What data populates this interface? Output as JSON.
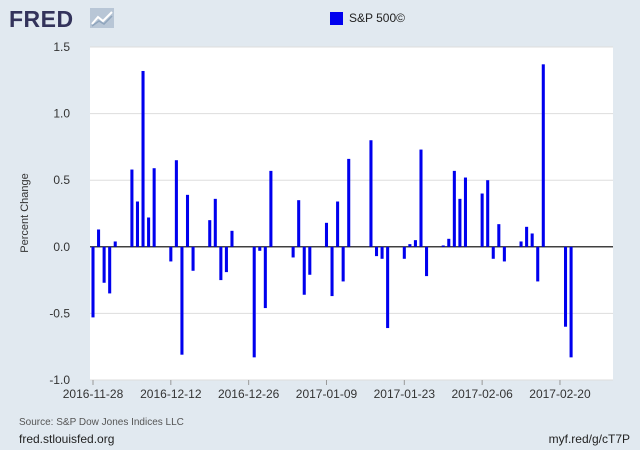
{
  "brand": {
    "logo_text": "FRED",
    "logo_icon": "fred-chart-icon"
  },
  "footer": {
    "source": "Source: S&P Dow Jones Indices LLC",
    "site": "fred.stlouisfed.org",
    "short_link": "myf.red/g/cT7P"
  },
  "colors": {
    "bar": "#0000ee",
    "background": "#e1e9f0",
    "plot": "#ffffff"
  },
  "chart_data": {
    "type": "bar",
    "title": "",
    "ylabel": "Percent Change",
    "ylim": [
      -1.0,
      1.5
    ],
    "yticks": [
      1.5,
      1.0,
      0.5,
      0.0,
      -0.5,
      -1.0
    ],
    "ytick_labels": [
      "1.5",
      "1.0",
      "0.5",
      "0.0",
      "-0.5",
      "-1.0"
    ],
    "xlim": [
      "2016-11-28",
      "2017-03-01"
    ],
    "xticks": [
      "2016-11-28",
      "2016-12-12",
      "2016-12-26",
      "2017-01-09",
      "2017-01-23",
      "2017-02-06",
      "2017-02-20"
    ],
    "grid": true,
    "legend_position": "top-center",
    "series": [
      {
        "name": "S&P 500©",
        "x": [
          "2016-11-28",
          "2016-11-29",
          "2016-11-30",
          "2016-12-01",
          "2016-12-02",
          "2016-12-05",
          "2016-12-06",
          "2016-12-07",
          "2016-12-08",
          "2016-12-09",
          "2016-12-12",
          "2016-12-13",
          "2016-12-14",
          "2016-12-15",
          "2016-12-16",
          "2016-12-19",
          "2016-12-20",
          "2016-12-21",
          "2016-12-22",
          "2016-12-23",
          "2016-12-27",
          "2016-12-28",
          "2016-12-29",
          "2016-12-30",
          "2017-01-03",
          "2017-01-04",
          "2017-01-05",
          "2017-01-06",
          "2017-01-09",
          "2017-01-10",
          "2017-01-11",
          "2017-01-12",
          "2017-01-13",
          "2017-01-17",
          "2017-01-18",
          "2017-01-19",
          "2017-01-20",
          "2017-01-23",
          "2017-01-24",
          "2017-01-25",
          "2017-01-26",
          "2017-01-27",
          "2017-01-30",
          "2017-01-31",
          "2017-02-01",
          "2017-02-02",
          "2017-02-03",
          "2017-02-06",
          "2017-02-07",
          "2017-02-08",
          "2017-02-09",
          "2017-02-10",
          "2017-02-13",
          "2017-02-14",
          "2017-02-15",
          "2017-02-16",
          "2017-02-17",
          "2017-02-21",
          "2017-02-22",
          "2017-02-23",
          "2017-02-24",
          "2017-02-27",
          "2017-02-28",
          "2017-03-01"
        ],
        "values": [
          -0.53,
          0.13,
          -0.27,
          -0.35,
          0.04,
          0.58,
          0.34,
          1.32,
          0.22,
          0.59,
          -0.11,
          0.65,
          -0.81,
          0.39,
          -0.18,
          0.2,
          0.36,
          -0.25,
          -0.19,
          0.12,
          -0.83,
          -0.03,
          -0.46,
          0.57,
          -0.08,
          0.35,
          -0.36,
          -0.21,
          0.18,
          -0.37,
          0.34,
          -0.26,
          0.66,
          0.8,
          -0.07,
          -0.09,
          -0.61,
          -0.09,
          0.02,
          0.05,
          0.73,
          -0.22,
          0.01,
          0.06,
          0.57,
          0.36,
          0.52,
          0.4,
          0.5,
          -0.09,
          0.17,
          -0.11,
          0.04,
          0.15,
          0.1,
          -0.26,
          1.37,
          -0.6,
          -0.83,
          0.0,
          0.0,
          0.0,
          0.0,
          0.0
        ]
      }
    ]
  }
}
